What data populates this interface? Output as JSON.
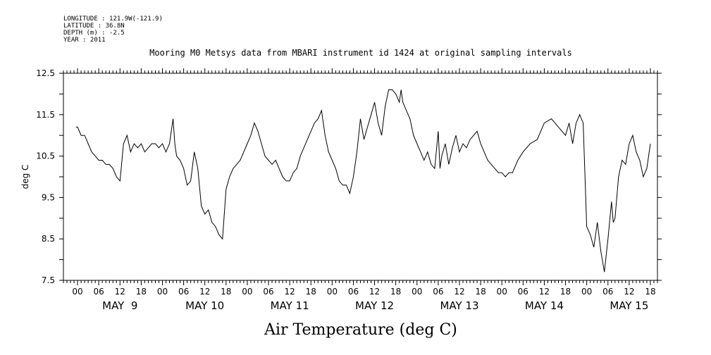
{
  "header": {
    "longitude": "LONGITUDE : 121.9W(-121.9)",
    "latitude": "LATITUDE : 36.8N",
    "depth": "DEPTH (m) : -2.5",
    "year": "YEAR : 2011"
  },
  "chart_data": {
    "type": "line",
    "title": "Mooring M0 Metsys data from MBARI instrument id 1424 at original sampling intervals",
    "xlabel": "Air Temperature (deg C)",
    "ylabel": "deg C",
    "ylim": [
      7.5,
      12.5
    ],
    "yticks": [
      "7.5",
      "8.5",
      "9.5",
      "10.5",
      "11.5",
      "12.5"
    ],
    "xlim_hours": [
      -4,
      164
    ],
    "hour_tick_labels": [
      "00",
      "06",
      "12",
      "18",
      "00",
      "06",
      "12",
      "18",
      "00",
      "06",
      "12",
      "18",
      "00",
      "06",
      "12",
      "18",
      "00",
      "06",
      "12",
      "18",
      "00",
      "06",
      "12",
      "18",
      "00",
      "06",
      "12",
      "18"
    ],
    "day_labels": [
      "MAY  9",
      "MAY 10",
      "MAY 11",
      "MAY 12",
      "MAY 13",
      "MAY 14",
      "MAY 15"
    ],
    "series": [
      {
        "x_hours_since_may9_00": [
          -0.5,
          0,
          1,
          2,
          3,
          4,
          5,
          6,
          7,
          8,
          9,
          10,
          11,
          12,
          13,
          14,
          15,
          16,
          17,
          18,
          19,
          20,
          21,
          22,
          23,
          24,
          25,
          26,
          27,
          27.5,
          28,
          29,
          30,
          31,
          32,
          33,
          34,
          35,
          36,
          37,
          38,
          39,
          40,
          41,
          42,
          43,
          44,
          45,
          46,
          47,
          48,
          49,
          50,
          51,
          52,
          53,
          54,
          55,
          56,
          57,
          58,
          59,
          60,
          61,
          62,
          63,
          64,
          65,
          66,
          67,
          68,
          69,
          70,
          71,
          72,
          73,
          74,
          75,
          76,
          77,
          78,
          79,
          80,
          81,
          82,
          83,
          84,
          85,
          86,
          87,
          88,
          89,
          90,
          91,
          91.5,
          92,
          93,
          94,
          95,
          96,
          97,
          98,
          99,
          100,
          101,
          102,
          102.5,
          103,
          104,
          105,
          106,
          107,
          108,
          109,
          110,
          111,
          112,
          113,
          114,
          115,
          116,
          117,
          118,
          119,
          120,
          121,
          122,
          123,
          124,
          124.5,
          126,
          128,
          130,
          132,
          134,
          136,
          138,
          139,
          140,
          141,
          142,
          143,
          144,
          145,
          146,
          147,
          148,
          149,
          150,
          151,
          151.5,
          152,
          153,
          154,
          155,
          156,
          157,
          158,
          159,
          160,
          161,
          162
        ],
        "y": [
          11.2,
          11.2,
          11.0,
          11.0,
          10.8,
          10.6,
          10.5,
          10.4,
          10.4,
          10.3,
          10.3,
          10.2,
          10.0,
          9.9,
          10.8,
          11.0,
          10.6,
          10.8,
          10.7,
          10.8,
          10.6,
          10.7,
          10.8,
          10.8,
          10.7,
          10.8,
          10.6,
          10.8,
          11.4,
          10.8,
          10.5,
          10.4,
          10.2,
          9.8,
          9.9,
          10.6,
          10.2,
          9.3,
          9.1,
          9.2,
          8.9,
          8.8,
          8.6,
          8.5,
          9.7,
          10.0,
          10.2,
          10.3,
          10.4,
          10.6,
          10.8,
          11.0,
          11.3,
          11.1,
          10.8,
          10.5,
          10.4,
          10.3,
          10.4,
          10.2,
          10.0,
          9.9,
          9.9,
          10.1,
          10.2,
          10.5,
          10.7,
          10.9,
          11.1,
          11.3,
          11.4,
          11.6,
          11.0,
          10.6,
          10.4,
          10.2,
          9.9,
          9.8,
          9.8,
          9.6,
          10.0,
          10.6,
          11.4,
          10.9,
          11.2,
          11.5,
          11.8,
          11.3,
          11.0,
          11.7,
          12.1,
          12.1,
          12.0,
          11.8,
          12.1,
          11.8,
          11.6,
          11.4,
          11.0,
          10.8,
          10.6,
          10.4,
          10.6,
          10.3,
          10.2,
          11.1,
          10.2,
          10.5,
          10.8,
          10.3,
          10.7,
          11.0,
          10.6,
          10.8,
          10.7,
          10.9,
          11.0,
          11.1,
          10.8,
          10.6,
          10.4,
          10.3,
          10.2,
          10.1,
          10.1,
          10.0,
          10.1,
          10.1,
          10.3,
          10.4,
          10.6,
          10.8,
          10.9,
          11.3,
          11.4,
          11.2,
          11.0,
          11.3,
          10.8,
          11.3,
          11.5,
          11.3,
          8.8,
          8.6,
          8.3,
          8.9,
          8.2,
          7.7,
          8.5,
          9.4,
          8.9,
          9.0,
          10.0,
          10.4,
          10.3,
          10.8,
          11.0,
          10.6,
          10.4,
          10.0,
          10.2,
          10.8
        ]
      }
    ]
  }
}
